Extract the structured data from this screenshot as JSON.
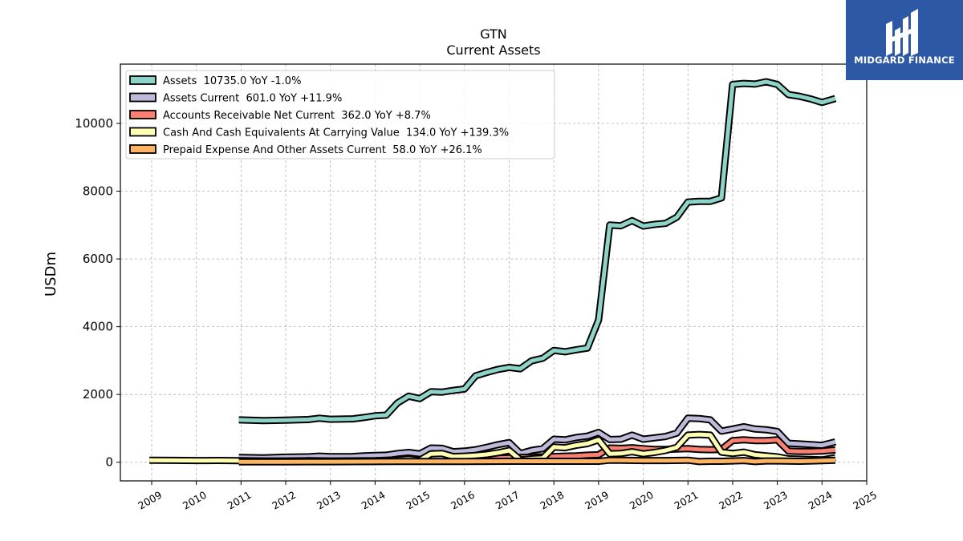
{
  "chart_data": {
    "type": "line",
    "title": "GTN",
    "subtitle": "Current  Assets",
    "ylabel": "USDm",
    "xlabel": "",
    "xlim": [
      2008.3,
      2025.0
    ],
    "ylim": [
      -550,
      11750
    ],
    "x_ticks": [
      "2009",
      "2010",
      "2011",
      "2012",
      "2013",
      "2014",
      "2015",
      "2016",
      "2017",
      "2018",
      "2019",
      "2020",
      "2021",
      "2022",
      "2023",
      "2024",
      "2025"
    ],
    "y_ticks": [
      "0",
      "2000",
      "4000",
      "6000",
      "8000",
      "10000"
    ],
    "grid": true,
    "legend_position": "top-left",
    "series": [
      {
        "name": "Assets  10735.0 YoY -1.0%",
        "color": "#8dd3c7",
        "x": [
          2010.95,
          2011.5,
          2012.0,
          2012.5,
          2012.75,
          2013.0,
          2013.5,
          2013.75,
          2014.0,
          2014.25,
          2014.5,
          2014.75,
          2015.0,
          2015.25,
          2015.5,
          2015.75,
          2016.0,
          2016.25,
          2016.5,
          2016.75,
          2017.0,
          2017.25,
          2017.5,
          2017.75,
          2018.0,
          2018.25,
          2018.5,
          2018.75,
          2019.0,
          2019.25,
          2019.5,
          2019.75,
          2020.0,
          2020.25,
          2020.5,
          2020.75,
          2021.0,
          2021.25,
          2021.5,
          2021.75,
          2022.0,
          2022.25,
          2022.5,
          2022.75,
          2023.0,
          2023.25,
          2023.5,
          2023.75,
          2024.0,
          2024.3
        ],
        "y": [
          1250,
          1230,
          1240,
          1260,
          1300,
          1270,
          1280,
          1320,
          1370,
          1390,
          1750,
          1950,
          1880,
          2080,
          2070,
          2120,
          2160,
          2550,
          2650,
          2740,
          2800,
          2760,
          2990,
          3070,
          3300,
          3260,
          3320,
          3370,
          4200,
          7000,
          6980,
          7130,
          6970,
          7020,
          7050,
          7230,
          7680,
          7700,
          7700,
          7800,
          11150,
          11180,
          11160,
          11230,
          11150,
          10850,
          10800,
          10720,
          10620,
          10735
        ]
      },
      {
        "name": "Assets Current  601.0 YoY +11.9%",
        "color": "#bebada",
        "x": [
          2010.95,
          2011.5,
          2012.0,
          2012.5,
          2012.75,
          2013.0,
          2013.5,
          2013.75,
          2014.0,
          2014.25,
          2014.5,
          2014.75,
          2015.0,
          2015.25,
          2015.5,
          2015.75,
          2016.0,
          2016.25,
          2016.5,
          2016.75,
          2017.0,
          2017.25,
          2017.5,
          2017.75,
          2018.0,
          2018.25,
          2018.5,
          2018.75,
          2019.0,
          2019.25,
          2019.5,
          2019.75,
          2020.0,
          2020.25,
          2020.5,
          2020.75,
          2021.0,
          2021.25,
          2021.5,
          2021.75,
          2022.0,
          2022.25,
          2022.5,
          2022.75,
          2023.0,
          2023.25,
          2023.5,
          2023.75,
          2024.0,
          2024.3
        ],
        "y": [
          140,
          130,
          150,
          160,
          180,
          165,
          170,
          190,
          200,
          210,
          260,
          290,
          250,
          420,
          410,
          310,
          330,
          370,
          440,
          520,
          580,
          260,
          350,
          400,
          680,
          660,
          730,
          770,
          880,
          670,
          680,
          800,
          680,
          720,
          760,
          860,
          1300,
          1290,
          1250,
          920,
          980,
          1050,
          980,
          960,
          910,
          560,
          540,
          520,
          500,
          601
        ]
      },
      {
        "name": "Accounts Receivable Net Current  362.0 YoY +8.7%",
        "color": "#fb8072",
        "x": [
          2016.25,
          2016.5,
          2016.75,
          2017.0,
          2017.25,
          2017.5,
          2017.75,
          2018.0,
          2018.25,
          2018.5,
          2018.75,
          2019.0,
          2019.25,
          2019.5,
          2019.75,
          2020.0,
          2020.25,
          2020.5,
          2020.75,
          2021.0,
          2021.25,
          2021.5,
          2021.75,
          2022.0,
          2022.25,
          2022.5,
          2022.75,
          2023.0,
          2023.25,
          2023.5,
          2023.75,
          2024.0,
          2024.3
        ],
        "y": [
          100,
          110,
          120,
          130,
          140,
          150,
          160,
          170,
          180,
          190,
          210,
          220,
          420,
          410,
          430,
          400,
          380,
          380,
          390,
          400,
          380,
          370,
          380,
          640,
          660,
          640,
          640,
          660,
          330,
          320,
          320,
          330,
          362
        ]
      },
      {
        "name": "Cash And Cash Equivalents At Carrying Value  134.0 YoY +139.3%",
        "color": "#ffffb3",
        "x": [
          2008.95,
          2009.5,
          2010.0,
          2010.5,
          2010.95,
          2011.5,
          2012.0,
          2012.5,
          2013.0,
          2013.5,
          2014.0,
          2014.5,
          2014.75,
          2015.0,
          2015.25,
          2015.5,
          2015.75,
          2016.0,
          2016.25,
          2016.5,
          2016.75,
          2017.0,
          2017.25,
          2017.5,
          2017.75,
          2018.0,
          2018.25,
          2018.5,
          2018.75,
          2019.0,
          2019.25,
          2019.5,
          2019.75,
          2020.0,
          2020.25,
          2020.5,
          2020.75,
          2021.0,
          2021.25,
          2021.5,
          2021.75,
          2022.0,
          2022.25,
          2022.5,
          2022.75,
          2023.0,
          2023.25,
          2023.5,
          2023.75,
          2024.0,
          2024.3
        ],
        "y": [
          60,
          55,
          50,
          52,
          45,
          40,
          40,
          45,
          40,
          42,
          45,
          70,
          90,
          60,
          250,
          260,
          170,
          180,
          200,
          230,
          280,
          350,
          70,
          100,
          120,
          450,
          430,
          500,
          550,
          660,
          250,
          260,
          310,
          250,
          290,
          350,
          440,
          800,
          820,
          800,
          300,
          260,
          300,
          220,
          190,
          160,
          100,
          90,
          80,
          70,
          134
        ]
      },
      {
        "name": "Prepaid Expense And Other Assets Current  58.0 YoY +26.1%",
        "color": "#fdb462",
        "x": [
          2010.95,
          2011.5,
          2012.0,
          2012.5,
          2013.0,
          2013.5,
          2014.0,
          2014.5,
          2015.0,
          2015.5,
          2016.0,
          2016.5,
          2017.0,
          2017.5,
          2018.0,
          2018.5,
          2019.0,
          2019.25,
          2019.5,
          2020.0,
          2020.5,
          2021.0,
          2021.25,
          2021.5,
          2021.75,
          2022.0,
          2022.25,
          2022.5,
          2022.75,
          2023.0,
          2023.5,
          2024.0,
          2024.3
        ],
        "y": [
          10,
          10,
          12,
          15,
          15,
          18,
          20,
          22,
          25,
          25,
          25,
          28,
          30,
          30,
          30,
          30,
          30,
          60,
          60,
          50,
          50,
          60,
          20,
          30,
          30,
          40,
          50,
          20,
          40,
          40,
          30,
          46,
          58
        ]
      }
    ]
  },
  "logo": {
    "text": "MIDGARD FINANCE"
  }
}
